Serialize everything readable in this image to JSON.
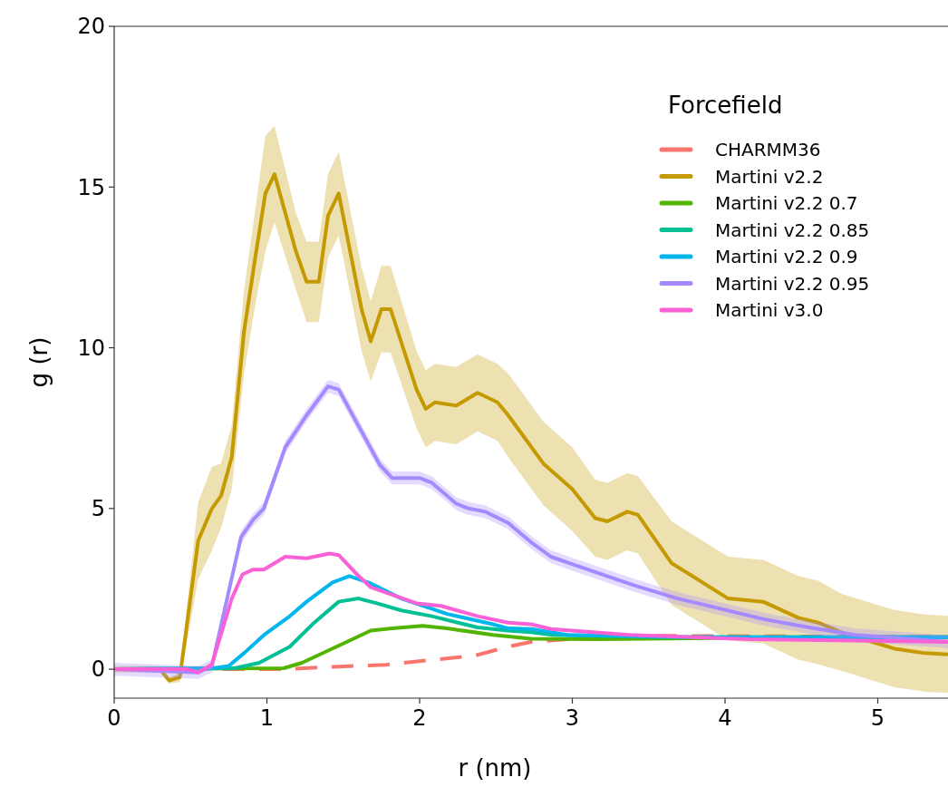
{
  "chart_data": {
    "type": "line",
    "xlabel": "r (nm)",
    "ylabel": "g (r)",
    "legend_title": "Forcefield",
    "legend": "top right",
    "grid": false,
    "xlim": [
      0,
      5.46
    ],
    "xticks": [
      0,
      1,
      2,
      3,
      4,
      5
    ],
    "ylim": [
      -0.9,
      20
    ],
    "yticks": [
      0,
      5,
      10,
      15,
      20
    ],
    "series": [
      {
        "name": "CHARMM36",
        "color": "#f8766d",
        "line_style": "dashed",
        "x": [
          0,
          1.1,
          1.47,
          1.78,
          2.06,
          2.36,
          2.58,
          2.73,
          2.97,
          3.57,
          5.46
        ],
        "values": [
          0,
          0,
          0.08,
          0.14,
          0.28,
          0.42,
          0.7,
          0.85,
          0.93,
          1.04,
          1.0
        ]
      },
      {
        "name": "Martini v2.2",
        "color": "#c49a00",
        "line_style": "solid",
        "x": [
          0,
          0.3,
          0.36,
          0.43,
          0.55,
          0.64,
          0.7,
          0.77,
          0.85,
          0.93,
          0.99,
          1.05,
          1.19,
          1.26,
          1.34,
          1.4,
          1.47,
          1.62,
          1.68,
          1.75,
          1.81,
          1.98,
          2.04,
          2.1,
          2.24,
          2.38,
          2.51,
          2.58,
          2.81,
          3.0,
          3.15,
          3.23,
          3.36,
          3.43,
          3.65,
          4.02,
          4.25,
          4.48,
          4.61,
          4.76,
          4.95,
          5.11,
          5.31,
          5.46
        ],
        "values": [
          0,
          0,
          -0.35,
          -0.25,
          4.0,
          5.0,
          5.4,
          6.6,
          10.5,
          13.0,
          14.8,
          15.4,
          13.0,
          12.05,
          12.05,
          14.1,
          14.8,
          11.2,
          10.2,
          11.2,
          11.2,
          8.7,
          8.1,
          8.3,
          8.2,
          8.6,
          8.3,
          7.9,
          6.4,
          5.6,
          4.7,
          4.6,
          4.9,
          4.8,
          3.3,
          2.2,
          2.1,
          1.6,
          1.45,
          1.15,
          0.87,
          0.64,
          0.5,
          0.46
        ],
        "lower": [
          -0.1,
          -0.1,
          -0.45,
          -0.4,
          2.8,
          3.7,
          4.4,
          5.6,
          9.2,
          11.5,
          13.0,
          13.9,
          11.8,
          10.8,
          10.8,
          12.8,
          13.5,
          9.9,
          8.95,
          9.85,
          9.85,
          7.5,
          6.9,
          7.1,
          7.0,
          7.4,
          7.1,
          6.6,
          5.1,
          4.3,
          3.5,
          3.4,
          3.7,
          3.6,
          2.0,
          0.9,
          0.8,
          0.3,
          0.15,
          -0.05,
          -0.33,
          -0.56,
          -0.7,
          -0.74
        ],
        "upper": [
          0.1,
          0.1,
          -0.25,
          -0.1,
          5.2,
          6.3,
          6.4,
          7.6,
          11.8,
          14.5,
          16.6,
          16.9,
          14.2,
          13.3,
          13.3,
          15.4,
          16.1,
          12.5,
          11.45,
          12.55,
          12.55,
          9.9,
          9.3,
          9.5,
          9.4,
          9.8,
          9.5,
          9.2,
          7.7,
          6.9,
          5.9,
          5.8,
          6.1,
          6.0,
          4.6,
          3.5,
          3.4,
          2.9,
          2.75,
          2.35,
          2.07,
          1.84,
          1.7,
          1.66
        ]
      },
      {
        "name": "Martini v2.2 0.7",
        "color": "#53b400",
        "line_style": "solid",
        "x": [
          0,
          1.11,
          1.23,
          1.5,
          1.68,
          1.82,
          2.02,
          2.18,
          2.48,
          2.73,
          3.17,
          4.16,
          5.46
        ],
        "values": [
          0,
          0.03,
          0.2,
          0.8,
          1.2,
          1.27,
          1.35,
          1.27,
          1.07,
          0.95,
          0.93,
          0.98,
          1.0
        ]
      },
      {
        "name": "Martini v2.2 0.85",
        "color": "#00c094",
        "line_style": "solid",
        "x": [
          0,
          0.79,
          0.95,
          1.15,
          1.31,
          1.47,
          1.6,
          1.72,
          1.88,
          2.08,
          2.38,
          2.58,
          2.73,
          2.87,
          3.57,
          5.46
        ],
        "values": [
          0,
          0.03,
          0.2,
          0.7,
          1.45,
          2.1,
          2.2,
          2.05,
          1.83,
          1.65,
          1.3,
          1.2,
          1.15,
          1.07,
          1.0,
          1.0
        ]
      },
      {
        "name": "Martini v2.2 0.9",
        "color": "#00b6eb",
        "line_style": "solid",
        "x": [
          0,
          0.65,
          0.75,
          0.85,
          0.99,
          1.15,
          1.26,
          1.43,
          1.54,
          1.68,
          1.88,
          2.18,
          2.48,
          2.58,
          2.73,
          2.97,
          3.76,
          5.46
        ],
        "values": [
          0,
          0.03,
          0.1,
          0.5,
          1.1,
          1.65,
          2.1,
          2.7,
          2.9,
          2.67,
          2.2,
          1.72,
          1.4,
          1.27,
          1.25,
          1.07,
          1.0,
          1.0
        ]
      },
      {
        "name": "Martini v2.2 0.95",
        "color": "#a58aff",
        "line_style": "solid",
        "x": [
          0,
          0.55,
          0.64,
          0.83,
          0.91,
          0.98,
          1.12,
          1.26,
          1.4,
          1.47,
          1.74,
          1.82,
          2.0,
          2.08,
          2.24,
          2.32,
          2.43,
          2.58,
          2.73,
          2.86,
          3.01,
          3.41,
          3.69,
          4.26,
          4.55,
          4.85,
          5.46
        ],
        "values": [
          0,
          -0.1,
          0.1,
          4.1,
          4.65,
          5.0,
          6.9,
          7.9,
          8.8,
          8.7,
          6.35,
          5.95,
          5.95,
          5.8,
          5.15,
          5.0,
          4.9,
          4.55,
          3.95,
          3.5,
          3.25,
          2.6,
          2.2,
          1.55,
          1.3,
          1.07,
          0.85
        ],
        "lower": [
          -0.2,
          -0.3,
          -0.1,
          3.9,
          4.45,
          4.8,
          6.7,
          7.7,
          8.6,
          8.5,
          6.15,
          5.75,
          5.75,
          5.6,
          4.95,
          4.8,
          4.7,
          4.35,
          3.75,
          3.3,
          3.05,
          2.4,
          2.0,
          1.35,
          1.1,
          0.87,
          0.65
        ],
        "upper": [
          0.2,
          0.1,
          0.3,
          4.3,
          4.85,
          5.2,
          7.1,
          8.1,
          9.0,
          8.9,
          6.55,
          6.15,
          6.15,
          6.0,
          5.35,
          5.2,
          5.1,
          4.75,
          4.15,
          3.7,
          3.45,
          2.8,
          2.4,
          1.75,
          1.5,
          1.27,
          1.05
        ]
      },
      {
        "name": "Martini v3.0",
        "color": "#fb61d7",
        "line_style": "solid",
        "x": [
          0,
          0.48,
          0.55,
          0.64,
          0.77,
          0.84,
          0.91,
          0.98,
          1.12,
          1.26,
          1.41,
          1.47,
          1.59,
          1.68,
          1.98,
          2.14,
          2.38,
          2.58,
          2.73,
          2.86,
          3.37,
          4.16,
          5.46
        ],
        "values": [
          0,
          0,
          -0.1,
          0.15,
          2.2,
          2.95,
          3.1,
          3.1,
          3.5,
          3.45,
          3.6,
          3.55,
          2.95,
          2.55,
          2.05,
          1.97,
          1.65,
          1.45,
          1.4,
          1.25,
          1.07,
          0.93,
          0.85
        ]
      }
    ]
  }
}
